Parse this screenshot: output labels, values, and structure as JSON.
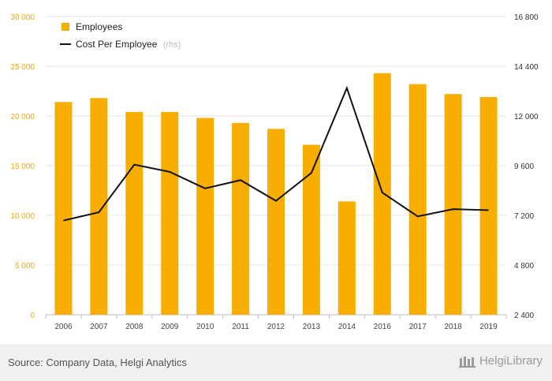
{
  "chart_data": {
    "type": "bar+line",
    "categories": [
      "2006",
      "2007",
      "2008",
      "2009",
      "2010",
      "2011",
      "2012",
      "2013",
      "2014",
      "2016",
      "2017",
      "2018",
      "2019"
    ],
    "series": [
      {
        "name": "Employees",
        "type": "bar",
        "axis": "left",
        "color": "#f7ae00",
        "values": [
          21400,
          21800,
          20400,
          20400,
          19800,
          19300,
          18700,
          17100,
          11400,
          24300,
          23200,
          22200,
          21900
        ]
      },
      {
        "name": "Cost Per Employee",
        "name_note": "(rhs)",
        "type": "line",
        "axis": "right",
        "color": "#111111",
        "values": [
          6950,
          7350,
          9650,
          9300,
          8500,
          8900,
          7900,
          9250,
          13350,
          8300,
          7150,
          7500,
          7450
        ]
      }
    ],
    "y_left": {
      "min": 0,
      "max": 30000,
      "ticks": [
        "0",
        "5 000",
        "10 000",
        "15 000",
        "20 000",
        "25 000",
        "30 000"
      ]
    },
    "y_right": {
      "min": 2400,
      "max": 16800,
      "ticks": [
        "2 400",
        "4 800",
        "7 200",
        "9 600",
        "12 000",
        "14 400",
        "16 800"
      ]
    },
    "grid": "horizontal",
    "legend_placement": "top-left"
  },
  "footer": {
    "source": "Source: Company Data, Helgi Analytics",
    "brand": "HelgiLibrary"
  },
  "colors": {
    "bar": "#f7ae00",
    "line": "#111111",
    "left_ticks": "#f0a800"
  }
}
